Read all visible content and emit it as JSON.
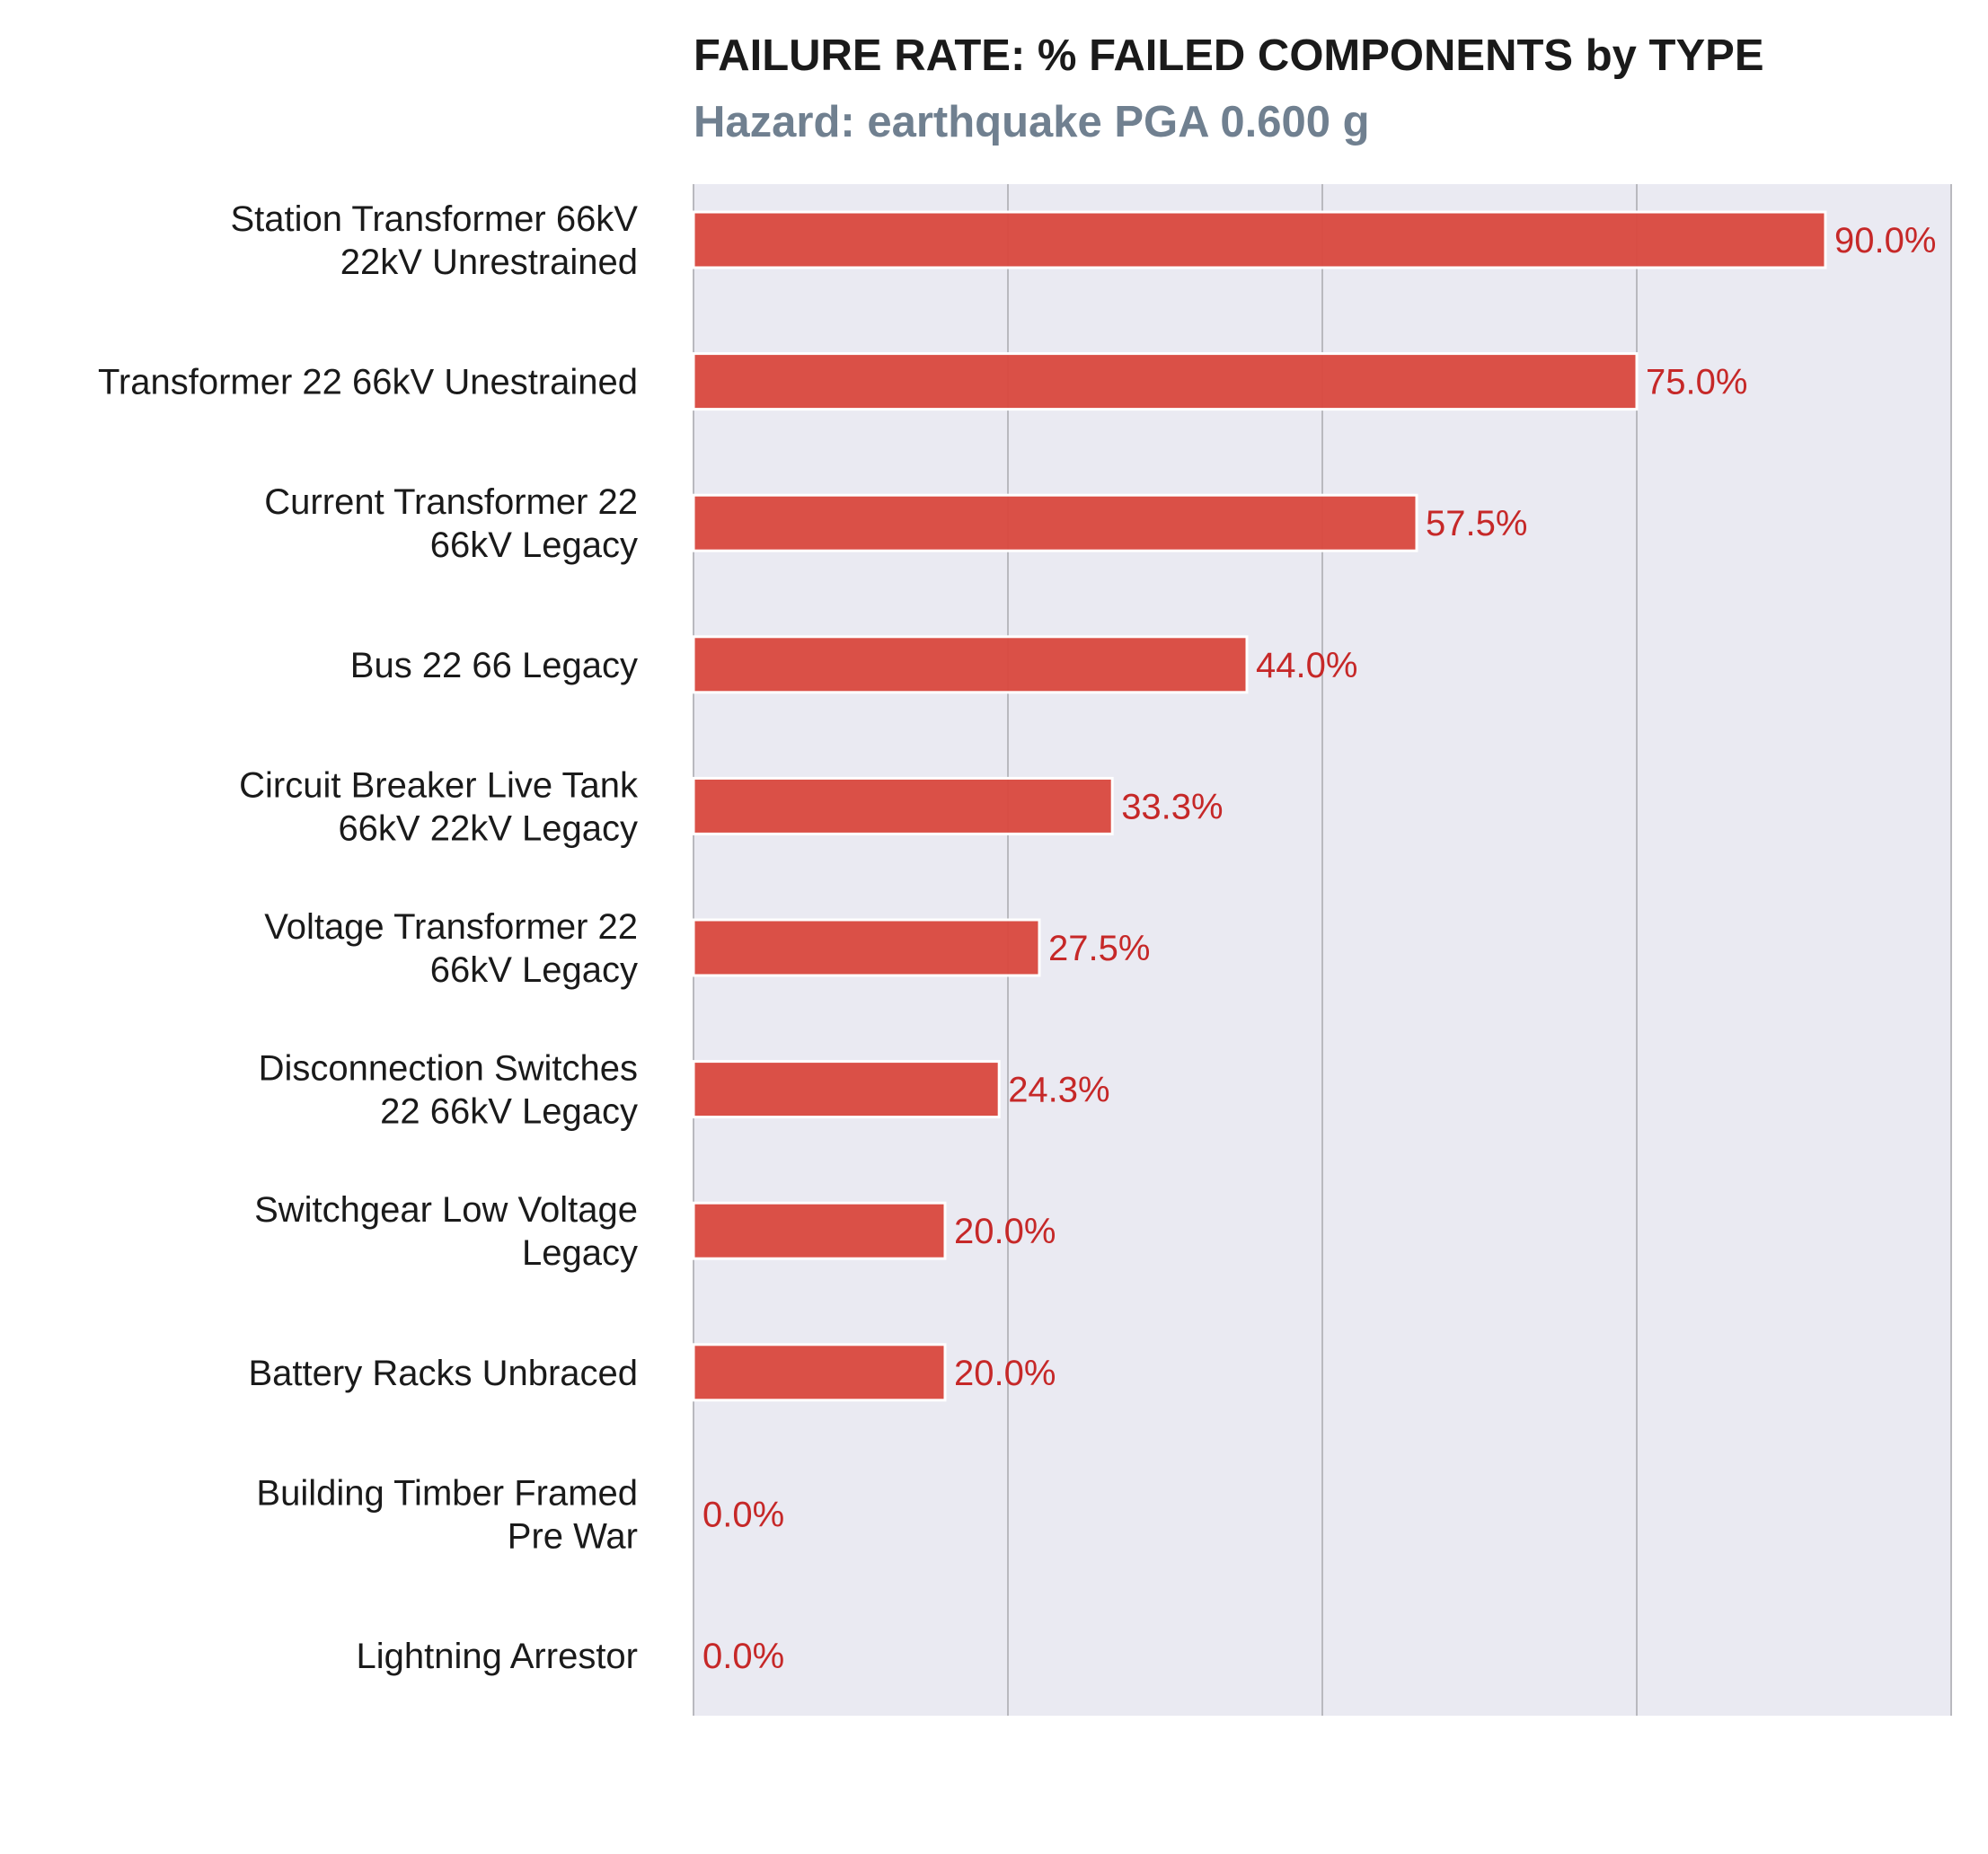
{
  "chart_data": {
    "type": "bar",
    "orientation": "horizontal",
    "title": "FAILURE RATE: % FAILED COMPONENTS by TYPE",
    "subtitle": "Hazard: earthquake PGA 0.600 g",
    "categories": [
      [
        "Station Transformer 66kV",
        "22kV Unrestrained"
      ],
      [
        "Transformer 22 66kV Unestrained"
      ],
      [
        "Current Transformer 22",
        "66kV Legacy"
      ],
      [
        "Bus 22 66 Legacy"
      ],
      [
        "Circuit Breaker Live Tank",
        "66kV 22kV Legacy"
      ],
      [
        "Voltage Transformer 22",
        "66kV Legacy"
      ],
      [
        "Disconnection Switches",
        "22 66kV Legacy"
      ],
      [
        "Switchgear Low Voltage",
        "Legacy"
      ],
      [
        "Battery Racks Unbraced"
      ],
      [
        "Building Timber Framed",
        "Pre War"
      ],
      [
        "Lightning Arrestor"
      ]
    ],
    "values": [
      90.0,
      75.0,
      57.5,
      44.0,
      33.3,
      27.5,
      24.3,
      20.0,
      20.0,
      0.0,
      0.0
    ],
    "value_labels": [
      "90.0%",
      "75.0%",
      "57.5%",
      "44.0%",
      "33.3%",
      "27.5%",
      "24.3%",
      "20.0%",
      "20.0%",
      "0.0%",
      "0.0%"
    ],
    "xlim": [
      0,
      100
    ],
    "x_gridlines": [
      0,
      25,
      50,
      75,
      100
    ],
    "grid": true,
    "legend": "none",
    "xlabel": "",
    "ylabel": "",
    "colors": {
      "bar": "#d94a41",
      "bar_edge": "#ffffff",
      "value_label": "#c62828",
      "title": "#1a1a1a",
      "subtitle": "#708090",
      "plot_bg": "#eaeaf2",
      "grid": "#b9b9bf"
    }
  }
}
